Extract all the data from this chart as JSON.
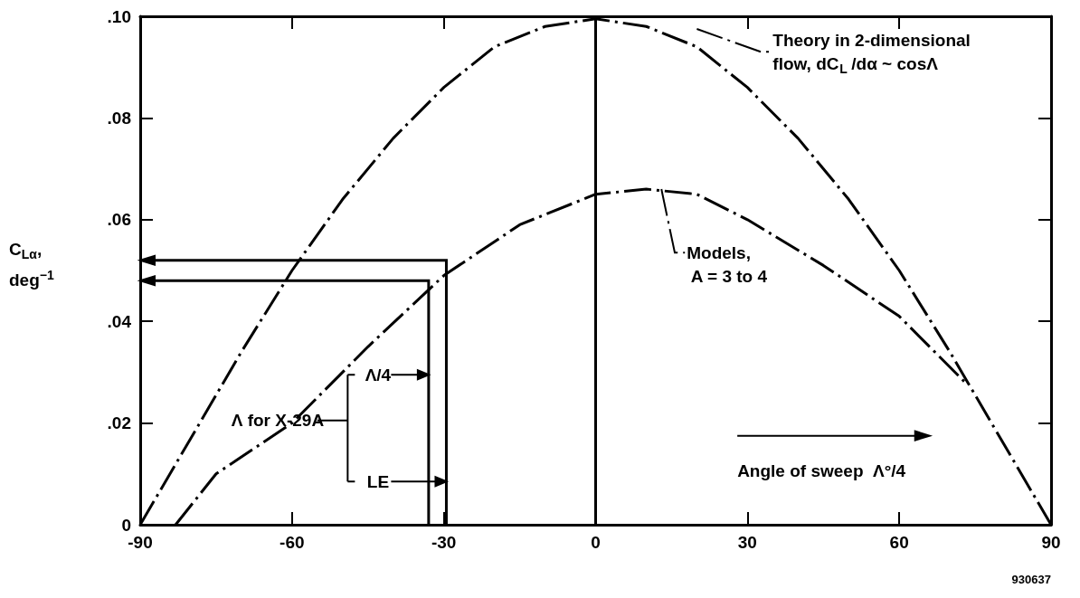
{
  "chart_data": {
    "type": "line",
    "ylabel": "C$_{Lα}$, deg$^{−1}$",
    "xlabel": "Angle of sweep  Λ°/4",
    "marker": "none",
    "line_style": "dashed",
    "grid": false,
    "xlim": [
      -90,
      90
    ],
    "xticks": [
      -90,
      -60,
      -30,
      0,
      30,
      60,
      90
    ],
    "ylim": [
      0,
      0.1
    ],
    "yticks": [
      0,
      {
        "value": 0.02,
        "label": ".02"
      },
      {
        "value": 0.04,
        "label": ".04"
      },
      {
        "value": 0.06,
        "label": ".06"
      },
      {
        "value": 0.08,
        "label": ".08"
      },
      {
        "value": 0.1,
        "label": ".10"
      }
    ],
    "series": [
      {
        "name": "Theory in 2-dimensional flow, dC$_{L}$ /dα ~ cosΛ",
        "color": "#000000",
        "x": [
          -90,
          -80,
          -70,
          -60,
          -50,
          -40,
          -30,
          -20,
          -10,
          0,
          10,
          20,
          30,
          40,
          50,
          60,
          70,
          80,
          90
        ],
        "values": [
          0,
          0.017,
          0.034,
          0.05,
          0.064,
          0.076,
          0.086,
          0.094,
          0.098,
          0.0995,
          0.098,
          0.094,
          0.086,
          0.076,
          0.064,
          0.05,
          0.034,
          0.017,
          0
        ]
      },
      {
        "name": "Models, A = 3 to 4",
        "color": "#000000",
        "x": [
          -83,
          -75,
          -60,
          -45,
          -30,
          -15,
          0,
          10,
          20,
          30,
          45,
          60,
          73
        ],
        "values": [
          0,
          0.01,
          0.02,
          0.035,
          0.049,
          0.059,
          0.065,
          0.066,
          0.065,
          0.06,
          0.051,
          0.041,
          0.028
        ]
      }
    ],
    "ref_lines": [
      {
        "axis": "x",
        "value": 0,
        "label": null
      }
    ],
    "annotations": [
      "Λ for X-29A",
      "Λ/4",
      "LE",
      "930637"
    ]
  }
}
